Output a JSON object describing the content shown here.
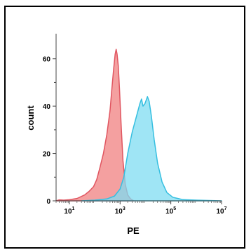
{
  "chart_data": {
    "type": "area",
    "xlabel": "PE",
    "ylabel": "count",
    "xscale": "log",
    "xlim": [
      3,
      10000000
    ],
    "ylim": [
      0,
      70
    ],
    "x_ticks": [
      10,
      1000,
      100000,
      10000000
    ],
    "x_tick_labels": [
      {
        "base": "10",
        "exp": "1"
      },
      {
        "base": "10",
        "exp": "3"
      },
      {
        "base": "10",
        "exp": "5"
      },
      {
        "base": "10",
        "exp": "7"
      }
    ],
    "y_ticks": [
      0,
      20,
      40,
      60
    ],
    "y_tick_labels": [
      "0",
      "20",
      "40",
      "60"
    ],
    "grid": false,
    "legend": "none",
    "series": [
      {
        "color": "#f08080",
        "stroke": "#e05560",
        "points": [
          [
            3,
            0
          ],
          [
            4,
            0.4
          ],
          [
            6,
            0.3
          ],
          [
            10,
            0.5
          ],
          [
            20,
            1
          ],
          [
            40,
            2.5
          ],
          [
            60,
            4
          ],
          [
            90,
            6
          ],
          [
            120,
            9
          ],
          [
            160,
            14
          ],
          [
            220,
            20
          ],
          [
            300,
            28
          ],
          [
            400,
            38
          ],
          [
            480,
            48
          ],
          [
            560,
            56
          ],
          [
            640,
            62
          ],
          [
            700,
            64
          ],
          [
            760,
            62
          ],
          [
            850,
            57
          ],
          [
            950,
            47
          ],
          [
            1100,
            32
          ],
          [
            1300,
            17
          ],
          [
            1600,
            7
          ],
          [
            2000,
            2.5
          ],
          [
            2600,
            0.8
          ],
          [
            3500,
            0
          ]
        ]
      },
      {
        "color": "#7fdcf2",
        "stroke": "#36bfe0",
        "points": [
          [
            30,
            0
          ],
          [
            100,
            0.3
          ],
          [
            300,
            0.8
          ],
          [
            600,
            2
          ],
          [
            1000,
            5
          ],
          [
            1400,
            10
          ],
          [
            2000,
            20
          ],
          [
            3000,
            29
          ],
          [
            4500,
            36
          ],
          [
            6000,
            41
          ],
          [
            7000,
            43
          ],
          [
            8000,
            40
          ],
          [
            9500,
            41
          ],
          [
            12000,
            44
          ],
          [
            14000,
            42
          ],
          [
            17000,
            36
          ],
          [
            22000,
            26
          ],
          [
            30000,
            16
          ],
          [
            45000,
            8
          ],
          [
            70000,
            3.5
          ],
          [
            120000,
            1.5
          ],
          [
            300000,
            0.5
          ],
          [
            1000000,
            0.3
          ],
          [
            10000000,
            0
          ]
        ]
      }
    ]
  }
}
